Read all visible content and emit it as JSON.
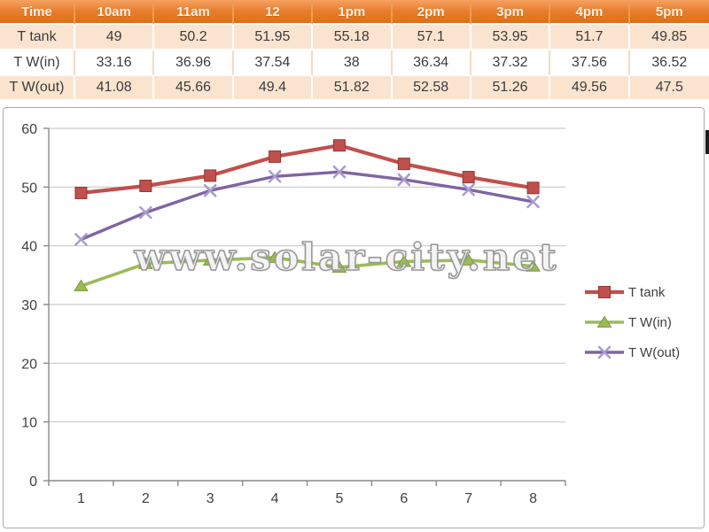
{
  "watermark": {
    "text": "www.solar-city.net"
  },
  "table": {
    "columns": [
      "Time",
      "10am",
      "11am",
      "12",
      "1pm",
      "2pm",
      "3pm",
      "4pm",
      "5pm"
    ],
    "rows": [
      {
        "label": "T tank",
        "values": [
          "49",
          "50.2",
          "51.95",
          "55.18",
          "57.1",
          "53.95",
          "51.7",
          "49.85"
        ]
      },
      {
        "label": "T W(in)",
        "values": [
          "33.16",
          "36.96",
          "37.54",
          "38",
          "36.34",
          "37.32",
          "37.56",
          "36.52"
        ]
      },
      {
        "label": "T W(out)",
        "values": [
          "41.08",
          "45.66",
          "49.4",
          "51.82",
          "52.58",
          "51.26",
          "49.56",
          "47.5"
        ]
      }
    ],
    "colors": {
      "header_bg": "#E8802F",
      "header_text": "#FFFFFF",
      "band_row_bg": "#FBE4CF",
      "plain_row_bg": "#FFFFFF"
    }
  },
  "chart_data": {
    "type": "line",
    "title": "",
    "xlabel": "",
    "ylabel": "",
    "x": [
      1,
      2,
      3,
      4,
      5,
      6,
      7,
      8
    ],
    "series": [
      {
        "name": "T tank",
        "color": "#C0504D",
        "marker": "square",
        "marker_stroke": "#953735",
        "line_width": 4.2,
        "values": [
          49,
          50.2,
          51.95,
          55.18,
          57.1,
          53.95,
          51.7,
          49.85
        ]
      },
      {
        "name": "T W(in)",
        "color": "#9BBB59",
        "marker": "triangle",
        "marker_stroke": "#7E9A3F",
        "line_width": 3.6,
        "values": [
          33.16,
          36.96,
          37.54,
          38,
          36.34,
          37.32,
          37.56,
          36.52
        ]
      },
      {
        "name": "T W(out)",
        "color": "#8064A2",
        "marker": "x",
        "marker_stroke": "#A89DCF",
        "line_width": 3.4,
        "values": [
          41.08,
          45.66,
          49.4,
          51.82,
          52.58,
          51.26,
          49.56,
          47.5
        ]
      }
    ],
    "ylim": [
      0,
      60
    ],
    "yticks": [
      0,
      10,
      20,
      30,
      40,
      50,
      60
    ],
    "grid": true,
    "legend_position": "right",
    "colors": {
      "gridline": "#C9C9C9",
      "axis": "#8A8A8A",
      "tick_text": "#3F3F3F"
    }
  }
}
